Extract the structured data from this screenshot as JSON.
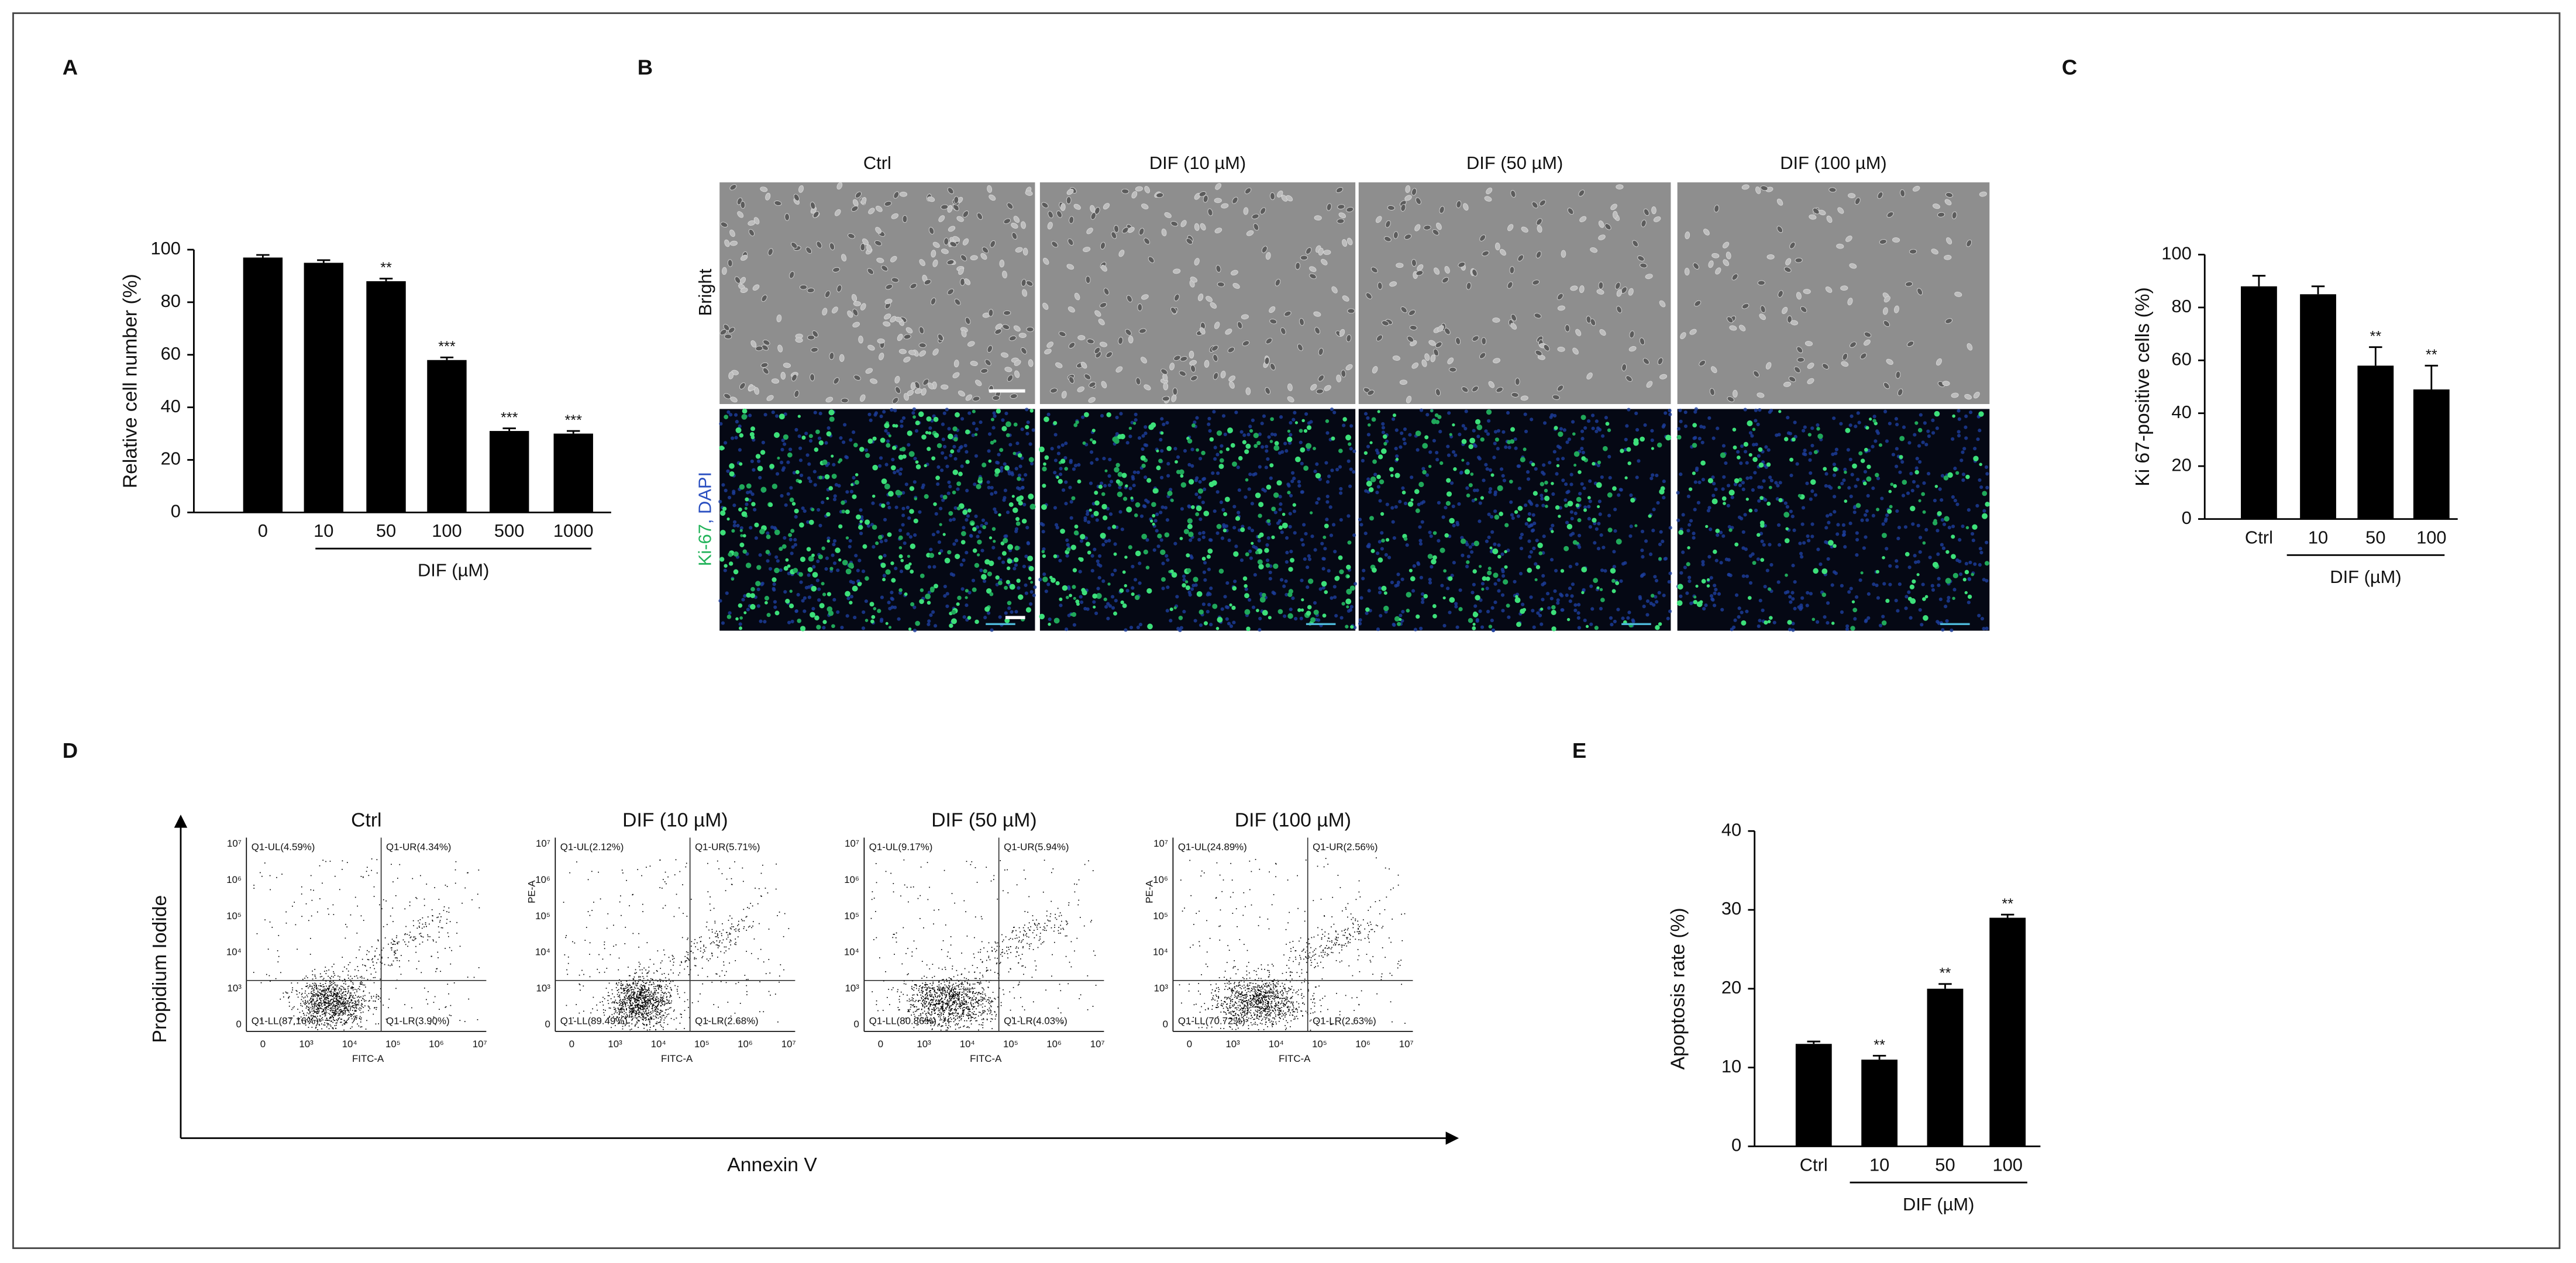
{
  "chart_data": [
    {
      "type": "bar",
      "panel": "A",
      "y_label": "Relative cell number (%)",
      "x_label": "DIF (µM)",
      "categories": [
        "0",
        "10",
        "50",
        "100",
        "500",
        "1000"
      ],
      "values": [
        97,
        95,
        88,
        58,
        31,
        30
      ],
      "errors": [
        1,
        1,
        1,
        1,
        1,
        1
      ],
      "annotations": [
        {
          "category": "50",
          "text": "**"
        },
        {
          "category": "100",
          "text": "***"
        },
        {
          "category": "500",
          "text": "***"
        },
        {
          "category": "1000",
          "text": "***"
        }
      ],
      "ylim": [
        0,
        100
      ],
      "yticks": [
        0,
        20,
        40,
        60,
        80,
        100
      ],
      "color": "#000000"
    },
    {
      "type": "bar",
      "panel": "C",
      "y_label": "Ki 67-positive cells (%)",
      "x_label": "DIF (µM)",
      "categories": [
        "Ctrl",
        "10",
        "50",
        "100"
      ],
      "values": [
        88,
        85,
        58,
        49
      ],
      "errors": [
        4,
        3,
        7,
        9
      ],
      "annotations": [
        {
          "category": "50",
          "text": "**"
        },
        {
          "category": "100",
          "text": "**"
        }
      ],
      "ylim": [
        0,
        100
      ],
      "yticks": [
        0,
        20,
        40,
        60,
        80,
        100
      ],
      "color": "#000000"
    },
    {
      "type": "bar",
      "panel": "E",
      "y_label": "Apoptosis rate (%)",
      "x_label": "DIF (µM)",
      "categories": [
        "Ctrl",
        "10",
        "50",
        "100"
      ],
      "values": [
        13,
        11,
        20,
        29
      ],
      "errors": [
        0.3,
        0.5,
        0.6,
        0.4
      ],
      "annotations": [
        {
          "category": "10",
          "text": "**"
        },
        {
          "category": "50",
          "text": "**"
        },
        {
          "category": "100",
          "text": "**"
        }
      ],
      "ylim": [
        0,
        40
      ],
      "yticks": [
        0,
        10,
        20,
        30,
        40
      ],
      "color": "#000000"
    }
  ],
  "panel_b": {
    "panel": "B",
    "columns": [
      "Ctrl",
      "DIF (10 µM)",
      "DIF (50 µM)",
      "DIF (100 µM)"
    ],
    "rows": [
      [
        "Bright"
      ],
      [
        "Ki-67",
        ", DAPI"
      ]
    ]
  },
  "panel_d": {
    "panel": "D",
    "y_axis": "Propidium Iodide",
    "x_axis": "Annexin V",
    "x_ticks": [
      "0",
      "10³",
      "10⁴",
      "10⁵",
      "10⁶",
      "10⁷"
    ],
    "y_ticks": [
      "0",
      "10³",
      "10⁴",
      "10⁵",
      "10⁶",
      "10⁷"
    ],
    "x_label": "FITC-A",
    "plots": [
      {
        "title": "Ctrl",
        "UL": "Q1-UL(4.59%)",
        "UR": "Q1-UR(4.34%)",
        "LL": "Q1-LL(87.16%)",
        "LR": "Q1-LR(3.90%)"
      },
      {
        "title": "DIF (10 µM)",
        "UL": "Q1-UL(2.12%)",
        "UR": "Q1-UR(5.71%)",
        "LL": "Q1-LL(89.49%)",
        "LR": "Q1-LR(2.68%)",
        "y_label": "PE-A"
      },
      {
        "title": "DIF (50 µM)",
        "UL": "Q1-UL(9.17%)",
        "UR": "Q1-UR(5.94%)",
        "LL": "Q1-LL(80.86%)",
        "LR": "Q1-LR(4.03%)"
      },
      {
        "title": "DIF (100 µM)",
        "UL": "Q1-UL(24.89%)",
        "UR": "Q1-UR(2.56%)",
        "LL": "Q1-LL(70.72%)",
        "LR": "Q1-LR(2.63%)",
        "y_label": "PE-A"
      }
    ]
  }
}
